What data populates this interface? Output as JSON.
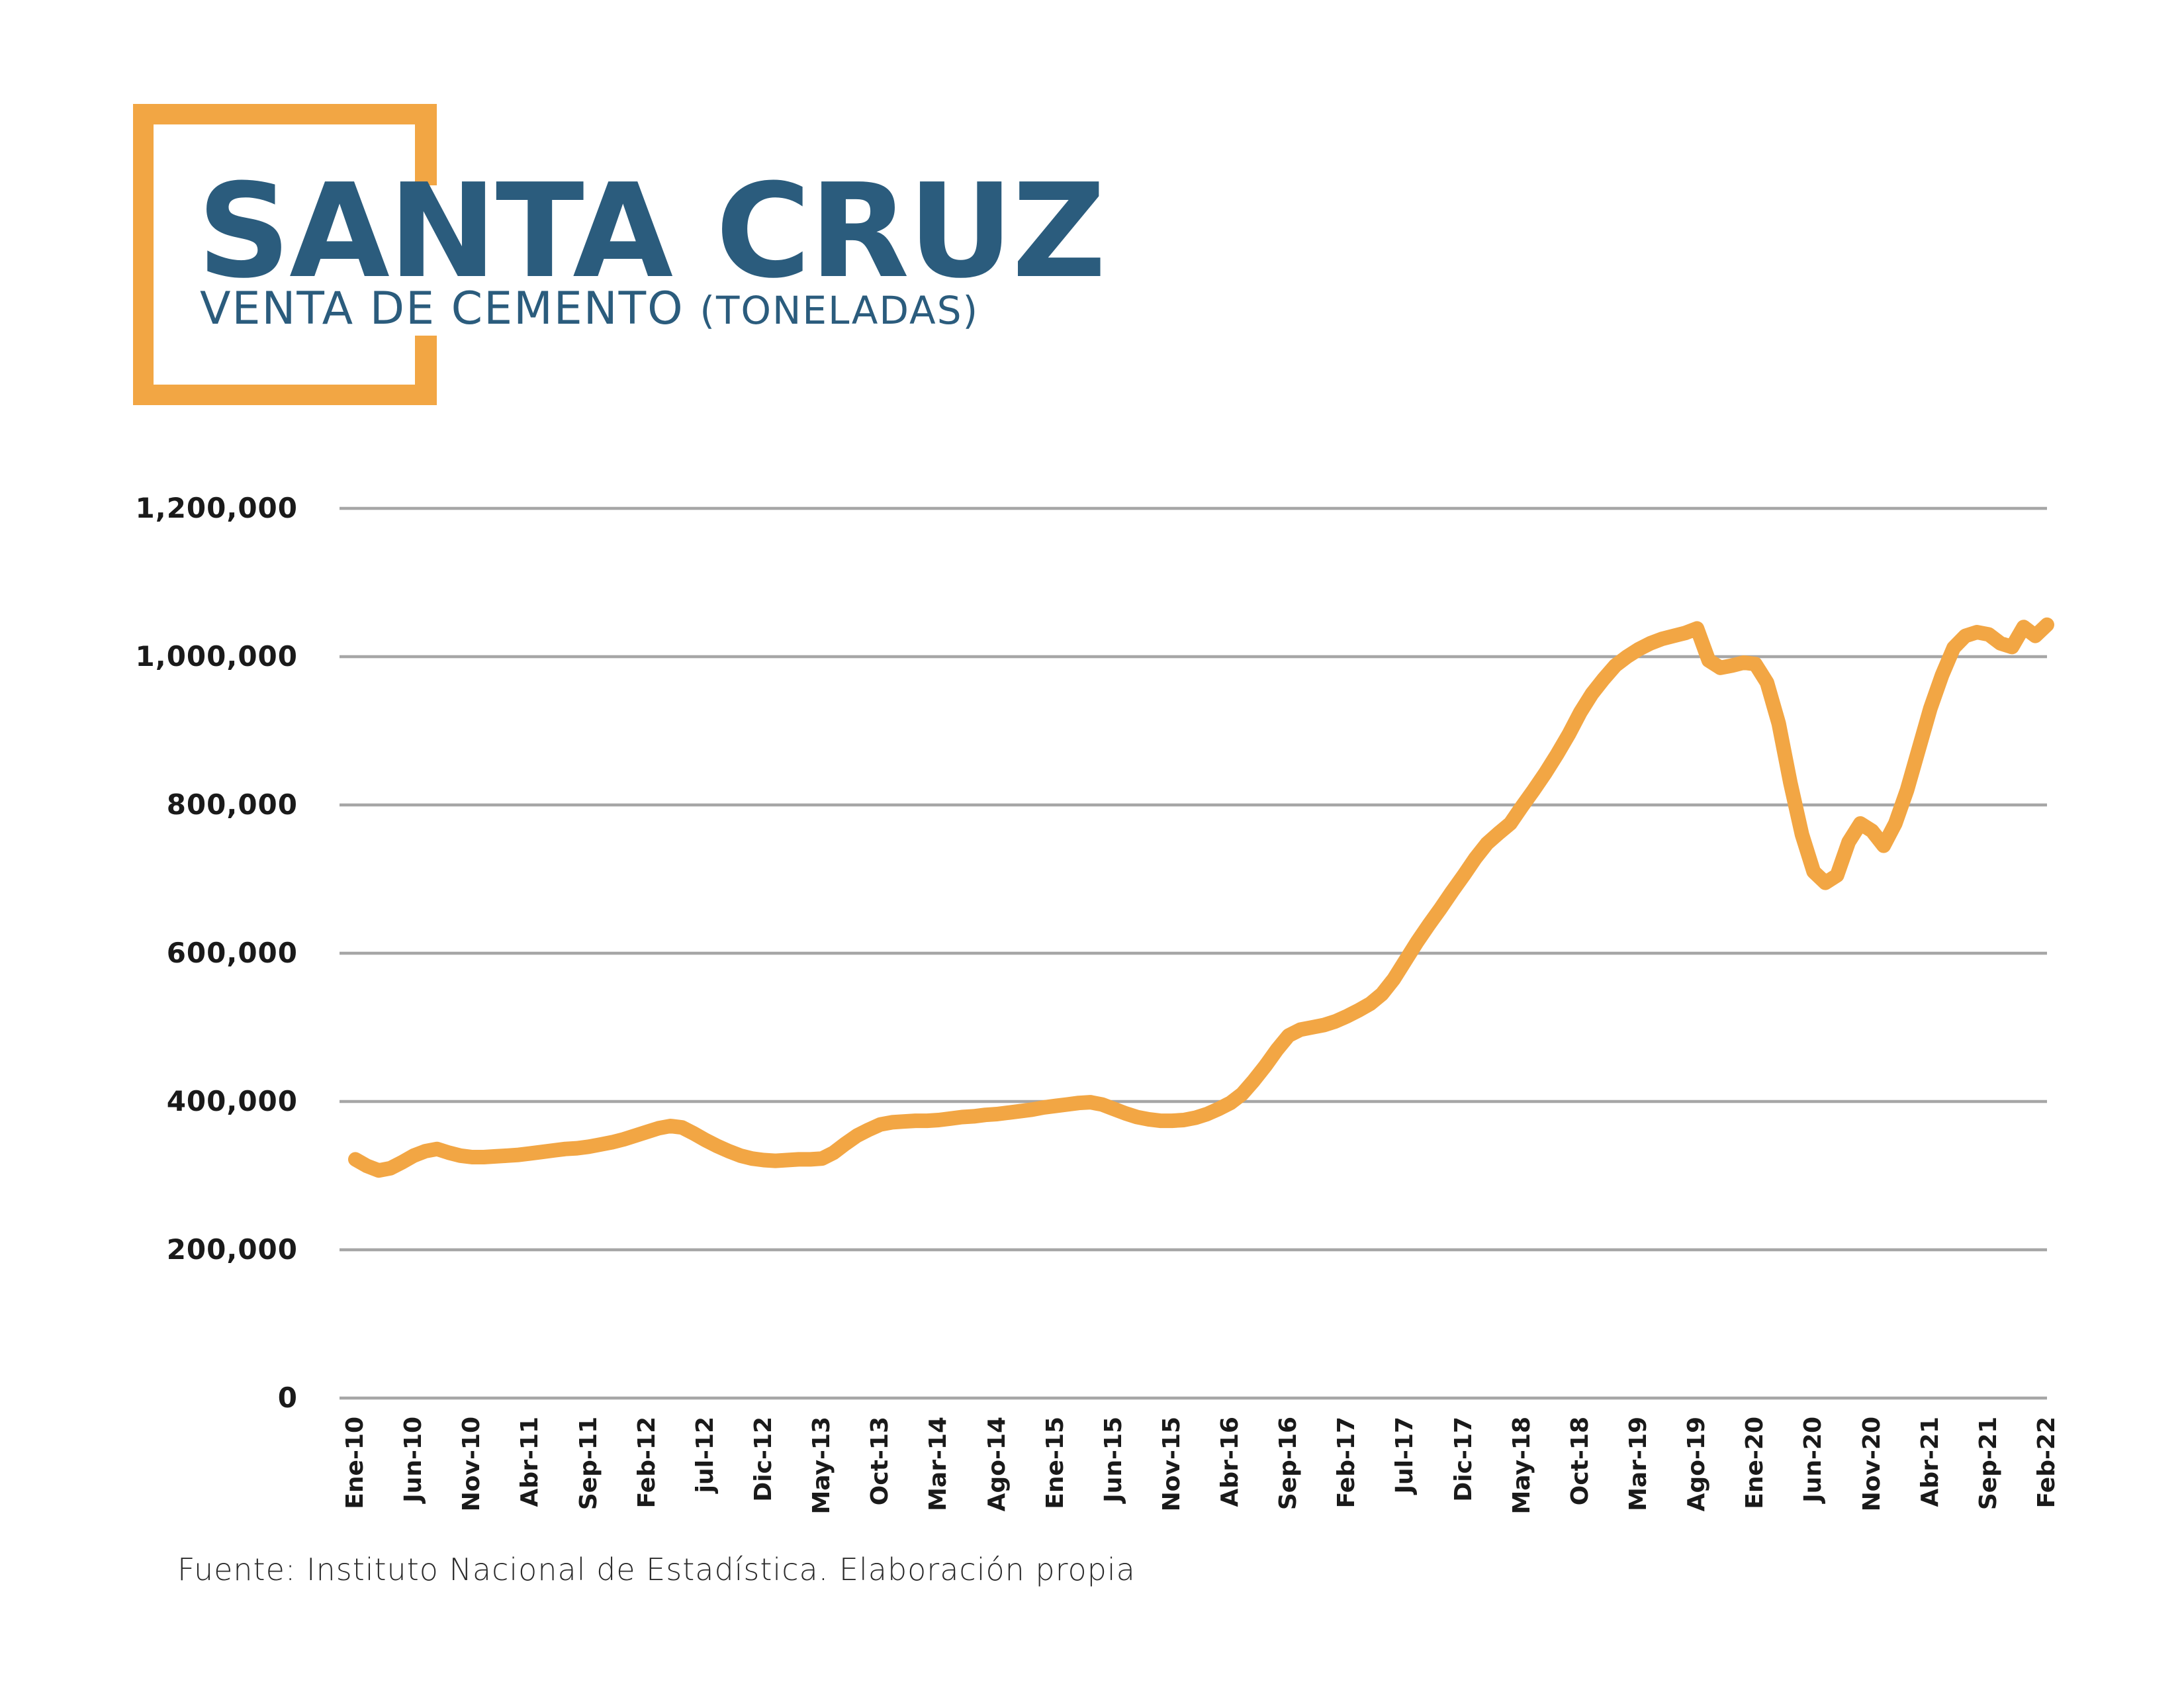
{
  "header": {
    "title": "SANTA CRUZ",
    "subtitle": "VENTA DE CEMENTO",
    "unit": "(TONELADAS)"
  },
  "footer": {
    "source": "Fuente: Instituto Nacional de Estadística. Elaboración propia"
  },
  "colors": {
    "accent_orange": "#F2A644",
    "title_blue": "#2B5C7D",
    "gridline_gray": "#A6A6A6",
    "axis_text": "#1A1A1A"
  },
  "chart_data": {
    "type": "line",
    "title": "SANTA CRUZ — VENTA DE CEMENTO (TONELADAS)",
    "xlabel": "",
    "ylabel": "",
    "x_start": "Ene-10",
    "x_end": "Feb-22",
    "n_points": 146,
    "x_tick_every": 5,
    "x_tick_labels": [
      "Ene-10",
      "Jun-10",
      "Nov-10",
      "Abr-11",
      "Sep-11",
      "Feb-12",
      "jul-12",
      "Dic-12",
      "May-13",
      "Oct-13",
      "Mar-14",
      "Ago-14",
      "Ene-15",
      "Jun-15",
      "Nov-15",
      "Abr-16",
      "Sep-16",
      "Feb-17",
      "Jul-17",
      "Dic-17",
      "May-18",
      "Oct-18",
      "Mar-19",
      "Ago-19",
      "Ene-20",
      "Jun-20",
      "Nov-20",
      "Abr-21",
      "Sep-21",
      "Feb-22"
    ],
    "y_tick_labels": [
      "1,200,000",
      "1,000,000",
      "800,000",
      "600,000",
      "400,000",
      "200,000",
      "0"
    ],
    "ylim": [
      0,
      1200000
    ],
    "ytick_step": 200000,
    "grid": "horizontal",
    "legend": "none",
    "series": [
      {
        "name": "Venta de cemento (toneladas)",
        "color": "#F2A644",
        "values": [
          322000,
          313000,
          307000,
          310000,
          318000,
          327000,
          333000,
          336000,
          331000,
          327000,
          325000,
          325000,
          326000,
          327000,
          328000,
          330000,
          332000,
          334000,
          336000,
          337000,
          339000,
          342000,
          345000,
          349000,
          354000,
          359000,
          364000,
          367000,
          365000,
          357000,
          348000,
          340000,
          333000,
          327000,
          323000,
          321000,
          320000,
          321000,
          322000,
          322000,
          323000,
          331000,
          343000,
          354000,
          362000,
          369000,
          372000,
          373000,
          374000,
          374000,
          375000,
          377000,
          379000,
          380000,
          382000,
          383000,
          385000,
          387000,
          389000,
          392000,
          394000,
          396000,
          398000,
          399000,
          396000,
          390000,
          384000,
          379000,
          376000,
          374000,
          374000,
          375000,
          378000,
          383000,
          390000,
          398000,
          410000,
          428000,
          448000,
          470000,
          489000,
          497000,
          500000,
          503000,
          508000,
          515000,
          523000,
          532000,
          545000,
          565000,
          590000,
          615000,
          638000,
          660000,
          683000,
          705000,
          728000,
          748000,
          762000,
          775000,
          798000,
          820000,
          843000,
          868000,
          895000,
          925000,
          950000,
          970000,
          988000,
          1000000,
          1010000,
          1018000,
          1024000,
          1028000,
          1032000,
          1038000,
          995000,
          985000,
          988000,
          992000,
          990000,
          965000,
          910000,
          830000,
          760000,
          710000,
          695000,
          705000,
          750000,
          775000,
          765000,
          745000,
          775000,
          820000,
          875000,
          930000,
          975000,
          1012000,
          1028000,
          1033000,
          1030000,
          1018000,
          1013000,
          1040000,
          1028000,
          1043000
        ]
      }
    ]
  }
}
